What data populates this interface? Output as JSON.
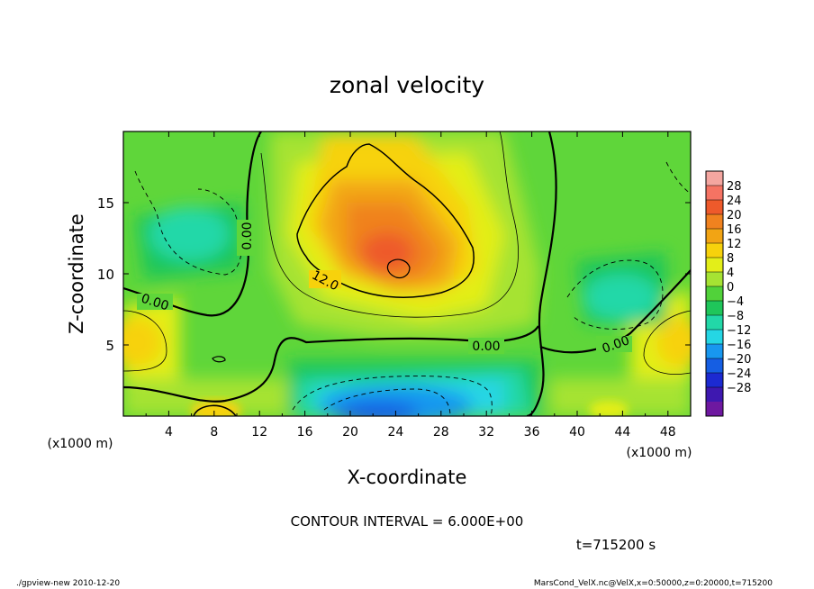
{
  "chart_data": {
    "type": "heatmap",
    "title": "zonal velocity",
    "xlabel": "X-coordinate",
    "ylabel": "Z-coordinate",
    "x_unit_label": "(x1000 m)",
    "y_unit_label": "(x1000 m)",
    "xlim": [
      0,
      50
    ],
    "ylim": [
      0,
      20
    ],
    "x_ticks": [
      "4",
      "8",
      "12",
      "16",
      "20",
      "24",
      "28",
      "32",
      "36",
      "40",
      "44",
      "48"
    ],
    "y_ticks": [
      "5",
      "10",
      "15"
    ],
    "colorbar_ticks": [
      "28",
      "24",
      "20",
      "16",
      "12",
      "8",
      "4",
      "0",
      "-4",
      "-8",
      "-12",
      "-16",
      "-20",
      "-24",
      "-28"
    ],
    "colorbar_colors": [
      "#f4a6a0",
      "#f57363",
      "#ee5a2b",
      "#f0821f",
      "#f2a414",
      "#f7d20c",
      "#e3ee19",
      "#a6e333",
      "#51d23a",
      "#1fc65a",
      "#22d8a8",
      "#25d6e4",
      "#1897ef",
      "#155ee3",
      "#1c2ad1",
      "#3e18b0",
      "#6e18a0"
    ],
    "contour_interval_text": "CONTOUR INTERVAL = 6.000E+00",
    "contour_labels": [
      "0.00",
      "0.00",
      "12.0",
      "0.00",
      "0.00"
    ],
    "time_text": "t=715200 s",
    "features": [
      {
        "kind": "max",
        "x": 23,
        "z": 12,
        "value": 20
      },
      {
        "kind": "min",
        "x": 26,
        "z": 1.5,
        "value": -14
      },
      {
        "kind": "min",
        "x": 6,
        "z": 13,
        "value": -8
      },
      {
        "kind": "min",
        "x": 44,
        "z": 8,
        "value": -8
      },
      {
        "kind": "max",
        "x": 1,
        "z": 5,
        "value": 8
      },
      {
        "kind": "max",
        "x": 48,
        "z": 5,
        "value": 8
      }
    ]
  },
  "footer": {
    "left": "./gpview-new  2010-12-20",
    "right": "MarsCond_VelX.nc@VelX,x=0:50000,z=0:20000,t=715200"
  }
}
